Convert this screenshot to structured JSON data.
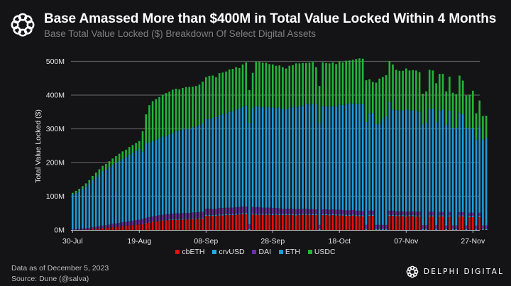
{
  "header": {
    "title": "Base Amassed More than $400M  in Total Value Locked Within 4 Months",
    "subtitle": "Base Total Value Locked ($) Breakdown Of Select Digital Assets"
  },
  "footer": {
    "data_as_of": "Data as of December 5, 2023",
    "source": "Source: Dune (@salva)"
  },
  "brand": {
    "name": "DELPHI DIGITAL",
    "logo_icon": "delphi-knot-logo-icon"
  },
  "colors": {
    "cbETH": "#e3100f",
    "crvUSD": "#2aa9e0",
    "DAI": "#6b2fa0",
    "ETH": "#1f9ad6",
    "USDC": "#23b43a",
    "background": "#141416",
    "grid": "#5a5a5e"
  },
  "chart_data": {
    "type": "bar",
    "stacked": true,
    "title": "Base Amassed More than $400M  in Total Value Locked Within 4 Months",
    "subtitle": "Base Total Value Locked ($) Breakdown Of Select Digital Assets",
    "xlabel": "",
    "ylabel": "Total Value Locked ($)",
    "ylim": [
      0,
      500
    ],
    "y_unit": "M",
    "yticks": [
      "0M",
      "100M",
      "200M",
      "300M",
      "400M",
      "500M"
    ],
    "ytick_values": [
      0,
      100,
      200,
      300,
      400,
      500
    ],
    "xticks": [
      "30-Jul",
      "19-Aug",
      "08-Sep",
      "28-Sep",
      "18-Oct",
      "07-Nov",
      "27-Nov"
    ],
    "xtick_day_index": [
      0,
      20,
      40,
      60,
      80,
      100,
      120
    ],
    "grid": true,
    "legend_position": "bottom-center",
    "legend": [
      "cbETH",
      "crvUSD",
      "DAI",
      "ETH",
      "USDC"
    ],
    "x_start": "30-Jul",
    "x_step": "1 day",
    "series": [
      {
        "name": "cbETH",
        "values": [
          0,
          0,
          0,
          0,
          1,
          1,
          2,
          3,
          4,
          5,
          6,
          7,
          8,
          9,
          10,
          11,
          12,
          13,
          14,
          15,
          16,
          18,
          20,
          22,
          24,
          25,
          27,
          28,
          29,
          29,
          30,
          30,
          30,
          31,
          31,
          31,
          32,
          32,
          33,
          34,
          42,
          42,
          41,
          42,
          43,
          43,
          44,
          44,
          44,
          45,
          46,
          47,
          48,
          0,
          46,
          45,
          45,
          45,
          45,
          45,
          44,
          45,
          44,
          44,
          44,
          44,
          44,
          43,
          44,
          45,
          45,
          44,
          44,
          44,
          0,
          44,
          44,
          43,
          44,
          43,
          43,
          43,
          42,
          42,
          43,
          41,
          41,
          40,
          0,
          42,
          42,
          0,
          0,
          0,
          0,
          42,
          42,
          41,
          41,
          41,
          40,
          41,
          41,
          40,
          40,
          0,
          0,
          40,
          40,
          0,
          40,
          40,
          0,
          40,
          0,
          0,
          40,
          40,
          0,
          38,
          38,
          0,
          38,
          0,
          0
        ]
      },
      {
        "name": "crvUSD",
        "values": [
          0,
          0,
          0,
          0,
          0,
          0,
          0,
          0,
          0,
          0,
          0,
          0,
          0,
          0,
          0,
          0,
          0,
          0,
          0,
          0,
          0,
          1,
          1,
          1,
          1,
          1,
          1,
          1,
          1,
          2,
          2,
          2,
          2,
          2,
          2,
          2,
          2,
          2,
          2,
          2,
          3,
          3,
          3,
          3,
          3,
          3,
          3,
          3,
          3,
          3,
          3,
          3,
          3,
          3,
          3,
          3,
          3,
          3,
          3,
          3,
          3,
          3,
          3,
          3,
          3,
          3,
          3,
          3,
          3,
          3,
          3,
          3,
          3,
          3,
          3,
          3,
          3,
          3,
          3,
          3,
          3,
          3,
          3,
          3,
          3,
          3,
          3,
          3,
          3,
          3,
          3,
          3,
          3,
          3,
          3,
          3,
          3,
          3,
          3,
          3,
          3,
          3,
          3,
          3,
          3,
          3,
          3,
          3,
          3,
          3,
          3,
          3,
          3,
          3,
          3,
          3,
          3,
          3,
          3,
          3,
          3,
          3,
          3,
          3,
          3
        ]
      },
      {
        "name": "DAI",
        "values": [
          1,
          2,
          3,
          4,
          4,
          5,
          6,
          6,
          7,
          8,
          8,
          9,
          10,
          10,
          11,
          12,
          12,
          13,
          13,
          14,
          14,
          14,
          15,
          15,
          15,
          16,
          16,
          16,
          16,
          16,
          16,
          17,
          17,
          17,
          17,
          17,
          18,
          18,
          18,
          18,
          18,
          18,
          18,
          18,
          19,
          19,
          19,
          19,
          19,
          19,
          19,
          19,
          18,
          14,
          19,
          19,
          19,
          18,
          18,
          18,
          18,
          17,
          17,
          16,
          16,
          16,
          16,
          16,
          15,
          15,
          15,
          15,
          15,
          14,
          12,
          14,
          14,
          14,
          14,
          14,
          14,
          13,
          13,
          13,
          13,
          13,
          13,
          13,
          12,
          12,
          12,
          12,
          12,
          12,
          12,
          12,
          12,
          11,
          11,
          11,
          11,
          11,
          11,
          11,
          11,
          11,
          11,
          11,
          11,
          11,
          10,
          10,
          10,
          10,
          10,
          10,
          10,
          10,
          10,
          10,
          10,
          10,
          10,
          10,
          10
        ]
      },
      {
        "name": "ETH",
        "values": [
          105,
          108,
          112,
          118,
          124,
          132,
          140,
          148,
          155,
          162,
          166,
          170,
          175,
          180,
          184,
          188,
          192,
          198,
          202,
          206,
          210,
          200,
          222,
          222,
          225,
          226,
          228,
          232,
          234,
          236,
          240,
          244,
          246,
          249,
          250,
          250,
          253,
          255,
          258,
          262,
          266,
          268,
          270,
          272,
          276,
          278,
          280,
          284,
          286,
          290,
          294,
          296,
          300,
          300,
          294,
          300,
          300,
          298,
          300,
          298,
          298,
          296,
          300,
          296,
          296,
          300,
          302,
          302,
          306,
          306,
          312,
          310,
          312,
          312,
          302,
          306,
          306,
          306,
          306,
          306,
          312,
          312,
          314,
          318,
          316,
          316,
          318,
          318,
          305,
          290,
          290,
          300,
          300,
          315,
          322,
          322,
          300,
          300,
          300,
          300,
          305,
          300,
          300,
          300,
          296,
          300,
          305,
          305,
          305,
          305,
          300,
          305,
          300,
          300,
          290,
          290,
          295,
          290,
          290,
          250,
          250,
          255,
          255,
          255,
          260
        ]
      },
      {
        "name": "USDC",
        "values": [
          4,
          6,
          7,
          8,
          9,
          10,
          12,
          13,
          14,
          15,
          16,
          18,
          19,
          20,
          21,
          22,
          22,
          22,
          23,
          23,
          24,
          60,
          85,
          110,
          117,
          120,
          122,
          124,
          126,
          127,
          128,
          126,
          122,
          122,
          124,
          124,
          120,
          120,
          120,
          124,
          124,
          126,
          126,
          118,
          124,
          124,
          124,
          126,
          126,
          126,
          118,
          126,
          128,
          98,
          104,
          132,
          132,
          132,
          130,
          128,
          128,
          126,
          124,
          124,
          120,
          124,
          124,
          130,
          126,
          126,
          120,
          124,
          124,
          110,
          110,
          130,
          128,
          128,
          130,
          126,
          128,
          126,
          130,
          127,
          130,
          134,
          134,
          134,
          124,
          100,
          92,
          122,
          134,
          124,
          122,
          122,
          134,
          120,
          117,
          117,
          120,
          118,
          119,
          119,
          118,
          90,
          92,
          116,
          114,
          116,
          110,
          105,
          98,
          102,
          104,
          100,
          110,
          100,
          96,
          100,
          112,
          78,
          78,
          70,
          66
        ]
      }
    ]
  }
}
